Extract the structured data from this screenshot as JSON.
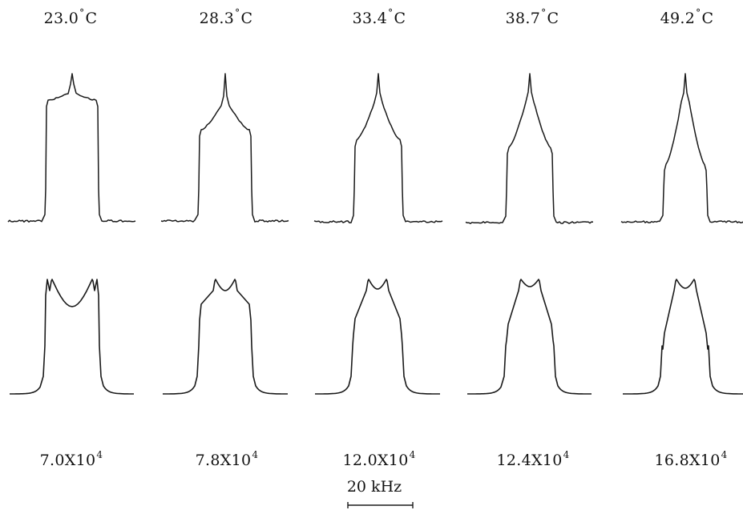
{
  "columns": [
    {
      "temperature": "23.0",
      "temp_unit": "C",
      "rate_mantissa": "7.0X10",
      "rate_exp": "4"
    },
    {
      "temperature": "28.3",
      "temp_unit": "C",
      "rate_mantissa": "7.8X10",
      "rate_exp": "4"
    },
    {
      "temperature": "33.4",
      "temp_unit": "C",
      "rate_mantissa": "12.0X10",
      "rate_exp": "4"
    },
    {
      "temperature": "38.7",
      "temp_unit": "C",
      "rate_mantissa": "12.4X10",
      "rate_exp": "4"
    },
    {
      "temperature": "49.2",
      "temp_unit": "C",
      "rate_mantissa": "16.8X10",
      "rate_exp": "4"
    }
  ],
  "degree_symbol": "°",
  "scale_bar": {
    "label": "20 kHz"
  },
  "colors": {
    "line": "#1a1a1a",
    "background": "#ffffff"
  }
}
